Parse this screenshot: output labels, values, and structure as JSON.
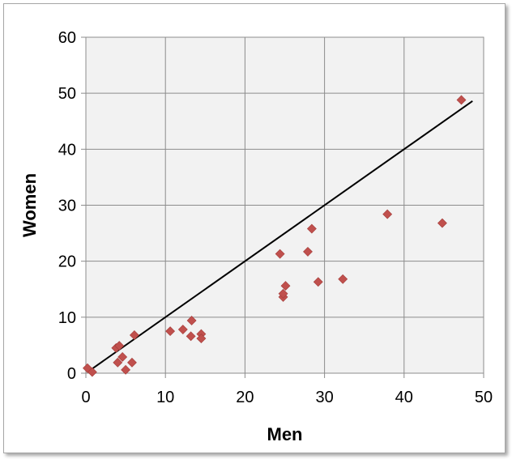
{
  "chart_data": {
    "type": "scatter",
    "title": "",
    "xlabel": "Men",
    "ylabel": "Women",
    "xlim": [
      0,
      50
    ],
    "ylim": [
      0,
      60
    ],
    "x_ticks": [
      0,
      10,
      20,
      30,
      40,
      50
    ],
    "y_ticks": [
      0,
      10,
      20,
      30,
      40,
      50,
      60
    ],
    "grid": true,
    "legend": "none",
    "plot_background": "#f2f2f2",
    "grid_color": "#8c8c8c",
    "marker_color": "#c0504d",
    "marker_shape": "diamond",
    "line_color": "#000000",
    "points": [
      {
        "x": 0.2,
        "y": 0.9
      },
      {
        "x": 0.8,
        "y": 0.2
      },
      {
        "x": 3.8,
        "y": 4.5
      },
      {
        "x": 4.2,
        "y": 4.9
      },
      {
        "x": 4.0,
        "y": 1.9
      },
      {
        "x": 4.6,
        "y": 2.9
      },
      {
        "x": 5.0,
        "y": 0.6
      },
      {
        "x": 5.8,
        "y": 1.9
      },
      {
        "x": 6.1,
        "y": 6.8
      },
      {
        "x": 10.6,
        "y": 7.5
      },
      {
        "x": 12.2,
        "y": 7.8
      },
      {
        "x": 13.3,
        "y": 9.4
      },
      {
        "x": 13.2,
        "y": 6.6
      },
      {
        "x": 14.5,
        "y": 7.0
      },
      {
        "x": 14.5,
        "y": 6.2
      },
      {
        "x": 24.4,
        "y": 21.3
      },
      {
        "x": 24.8,
        "y": 13.6
      },
      {
        "x": 24.8,
        "y": 14.2
      },
      {
        "x": 25.1,
        "y": 15.6
      },
      {
        "x": 27.9,
        "y": 21.7
      },
      {
        "x": 28.4,
        "y": 25.8
      },
      {
        "x": 29.2,
        "y": 16.3
      },
      {
        "x": 32.3,
        "y": 16.8
      },
      {
        "x": 37.9,
        "y": 28.4
      },
      {
        "x": 44.8,
        "y": 26.8
      },
      {
        "x": 47.2,
        "y": 48.8
      }
    ],
    "reference_line": {
      "x": [
        0.5,
        48.6
      ],
      "y": [
        0.5,
        48.6
      ]
    }
  }
}
